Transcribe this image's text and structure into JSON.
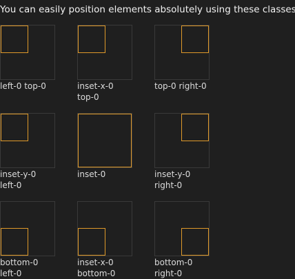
{
  "header": {
    "title": "You can easily position elements absolutely using these classes:"
  },
  "items": [
    {
      "lines": [
        "left-0 top-0"
      ]
    },
    {
      "lines": [
        "inset-x-0",
        "top-0"
      ]
    },
    {
      "lines": [
        "top-0 right-0"
      ]
    },
    {
      "lines": [
        "inset-y-0",
        "left-0"
      ]
    },
    {
      "lines": [
        "inset-0"
      ]
    },
    {
      "lines": [
        "inset-y-0",
        "right-0"
      ]
    },
    {
      "lines": [
        "bottom-0",
        "left-0"
      ]
    },
    {
      "lines": [
        "inset-x-0",
        "bottom-0"
      ]
    },
    {
      "lines": [
        "bottom-0",
        "right-0"
      ]
    }
  ]
}
